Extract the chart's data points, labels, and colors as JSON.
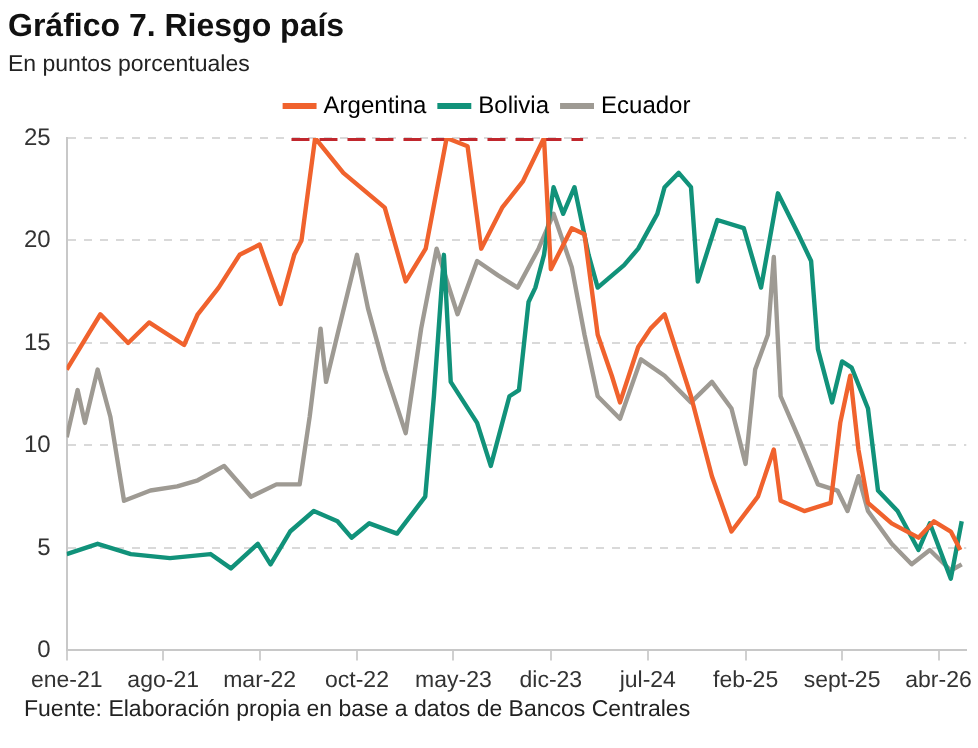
{
  "chart_data": {
    "type": "line",
    "title": "Gráfico 7. Riesgo país",
    "subtitle": "En puntos porcentuales",
    "annotations": [
      "Fuente: Elaboración propia en base a datos de Bancos Centrales"
    ],
    "xlim": [
      "2021-01-01",
      "2026-06-01"
    ],
    "xticks": [
      {
        "value": "2021-01-01",
        "label": "ene-21"
      },
      {
        "value": "2021-08-01",
        "label": "ago-21"
      },
      {
        "value": "2022-03-01",
        "label": "mar-22"
      },
      {
        "value": "2022-10-01",
        "label": "oct-22"
      },
      {
        "value": "2023-05-01",
        "label": "may-23"
      },
      {
        "value": "2023-12-01",
        "label": "dic-23"
      },
      {
        "value": "2024-07-01",
        "label": "jul-24"
      },
      {
        "value": "2025-02-01",
        "label": "feb-25"
      },
      {
        "value": "2025-09-01",
        "label": "sept-25"
      },
      {
        "value": "2026-04-01",
        "label": "abr-26"
      }
    ],
    "ylim": [
      0,
      25
    ],
    "yticks": [
      0,
      5,
      10,
      15,
      20,
      25
    ],
    "grid": "y",
    "legend": "top",
    "series": [
      {
        "name": "Argentina",
        "color": "#f0622d",
        "x": [
          "2021-01-01",
          "2021-03-16",
          "2021-05-16",
          "2021-07-01",
          "2021-09-16",
          "2021-10-16",
          "2021-12-01",
          "2022-01-16",
          "2022-03-01",
          "2022-04-16",
          "2022-05-16",
          "2022-06-01",
          "2022-07-01",
          "2022-09-01",
          "2022-12-01",
          "2023-01-16",
          "2023-03-01",
          "2023-04-16",
          "2023-06-01",
          "2023-07-01",
          "2023-08-16",
          "2023-10-01",
          "2023-11-16",
          "2023-12-01",
          "2024-01-16",
          "2024-02-13",
          "2024-03-13",
          "2024-04-13",
          "2024-05-01",
          "2024-06-10",
          "2024-07-07",
          "2024-08-07",
          "2024-10-04",
          "2024-11-19",
          "2025-01-01",
          "2025-02-28",
          "2025-04-04",
          "2025-04-19",
          "2025-06-10",
          "2025-08-07",
          "2025-08-28",
          "2025-09-19",
          "2025-10-07",
          "2025-10-28",
          "2025-12-19",
          "2026-02-16",
          "2026-03-22",
          "2026-04-28",
          "2026-05-19"
        ],
        "values": [
          13.7,
          16.4,
          15.0,
          16.0,
          14.9,
          16.4,
          17.7,
          19.3,
          19.8,
          16.9,
          19.3,
          20.0,
          25,
          23.3,
          21.6,
          18.0,
          19.6,
          25,
          24.6,
          19.6,
          21.6,
          22.9,
          25,
          18.6,
          20.6,
          20.3,
          15.4,
          13.4,
          12.1,
          14.8,
          15.7,
          16.4,
          12.4,
          8.5,
          5.8,
          7.5,
          9.8,
          7.3,
          6.8,
          7.2,
          11.1,
          13.4,
          9.8,
          7.2,
          6.2,
          5.5,
          6.3,
          5.8,
          4.9
        ]
      },
      {
        "name": "Bolivia",
        "color": "#11927a",
        "x": [
          "2021-01-01",
          "2021-03-10",
          "2021-05-22",
          "2021-08-16",
          "2021-11-13",
          "2021-12-28",
          "2022-02-25",
          "2022-03-25",
          "2022-05-07",
          "2022-06-28",
          "2022-08-19",
          "2022-09-19",
          "2022-10-28",
          "2022-12-28",
          "2023-02-28",
          "2023-03-19",
          "2023-04-10",
          "2023-04-25",
          "2023-06-22",
          "2023-07-22",
          "2023-09-01",
          "2023-09-22",
          "2023-10-13",
          "2023-10-28",
          "2023-11-16",
          "2023-12-07",
          "2023-12-28",
          "2024-01-22",
          "2024-02-22",
          "2024-03-13",
          "2024-05-10",
          "2024-06-10",
          "2024-07-22",
          "2024-08-07",
          "2024-09-07",
          "2024-10-04",
          "2024-10-19",
          "2024-12-01",
          "2025-01-28",
          "2025-03-07",
          "2025-04-13",
          "2025-05-28",
          "2025-06-25",
          "2025-07-10",
          "2025-08-10",
          "2025-09-01",
          "2025-09-22",
          "2025-10-28",
          "2025-11-19",
          "2026-01-01",
          "2026-02-16",
          "2026-03-13",
          "2026-04-28",
          "2026-05-22"
        ],
        "values": [
          4.7,
          5.2,
          4.7,
          4.5,
          4.7,
          4.0,
          5.2,
          4.2,
          5.8,
          6.8,
          6.3,
          5.5,
          6.2,
          5.7,
          7.5,
          12.4,
          19.3,
          13.1,
          11.1,
          9.0,
          12.4,
          12.7,
          17.0,
          17.7,
          19.3,
          22.6,
          21.3,
          22.6,
          19.3,
          17.7,
          18.8,
          19.6,
          21.3,
          22.6,
          23.3,
          22.6,
          18.0,
          21.0,
          20.6,
          17.7,
          22.3,
          20.3,
          19.0,
          14.7,
          12.1,
          14.1,
          13.8,
          11.8,
          7.8,
          6.8,
          4.9,
          6.2,
          3.5,
          6.3
        ]
      },
      {
        "name": "Ecuador",
        "color": "#9e9a93",
        "x": [
          "2021-01-01",
          "2021-01-25",
          "2021-02-10",
          "2021-03-10",
          "2021-04-07",
          "2021-05-07",
          "2021-07-04",
          "2021-09-01",
          "2021-10-16",
          "2021-12-13",
          "2022-02-10",
          "2022-04-07",
          "2022-05-28",
          "2022-06-19",
          "2022-07-13",
          "2022-07-25",
          "2022-08-19",
          "2022-10-01",
          "2022-10-25",
          "2022-12-01",
          "2023-01-16",
          "2023-02-19",
          "2023-03-25",
          "2023-05-10",
          "2023-06-22",
          "2023-08-07",
          "2023-09-19",
          "2023-11-04",
          "2023-12-07",
          "2024-01-16",
          "2024-02-13",
          "2024-03-13",
          "2024-05-01",
          "2024-06-16",
          "2024-08-07",
          "2024-10-04",
          "2024-11-19",
          "2025-01-01",
          "2025-02-01",
          "2025-02-22",
          "2025-03-22",
          "2025-04-04",
          "2025-04-19",
          "2025-05-28",
          "2025-07-10",
          "2025-08-22",
          "2025-09-13",
          "2025-10-07",
          "2025-10-28",
          "2025-12-19",
          "2026-02-01",
          "2026-03-13",
          "2026-04-28",
          "2026-05-22"
        ],
        "values": [
          10.4,
          12.7,
          11.1,
          13.7,
          11.4,
          7.3,
          7.8,
          8.0,
          8.3,
          9.0,
          7.5,
          8.1,
          8.1,
          11.4,
          15.7,
          13.1,
          15.4,
          19.3,
          16.7,
          13.7,
          10.6,
          15.7,
          19.6,
          16.4,
          19.0,
          18.3,
          17.7,
          19.6,
          21.3,
          18.7,
          15.4,
          12.4,
          11.3,
          14.2,
          13.4,
          12.1,
          13.1,
          11.8,
          9.1,
          13.7,
          15.4,
          19.2,
          12.4,
          10.4,
          8.1,
          7.8,
          6.8,
          8.5,
          6.8,
          5.2,
          4.2,
          4.9,
          3.9,
          4.2
        ]
      },
      {
        "color": "#c0272d",
        "line_style": "dashed",
        "x": [
          "2022-05-10",
          "2024-02-10"
        ],
        "values": [
          25,
          25
        ]
      }
    ]
  }
}
